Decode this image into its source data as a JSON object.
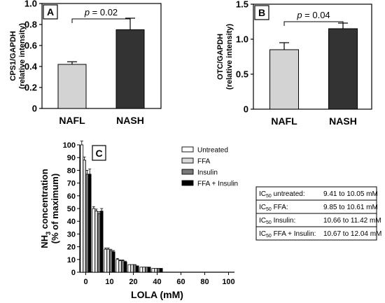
{
  "chart_data": [
    {
      "panel": "A",
      "type": "bar",
      "ylabel_line1": "CPS1/GAPDH",
      "ylabel_line2": "(relative intensity)",
      "categories": [
        "NAFL",
        "NASH"
      ],
      "values": [
        0.42,
        0.75
      ],
      "errors": [
        0.025,
        0.11
      ],
      "colors": [
        "#d3d3d3",
        "#333333"
      ],
      "ylim": [
        0,
        1.0
      ],
      "yticks": [
        "0",
        "0.2",
        "0.4",
        "0.6",
        "0.8",
        "1.0"
      ],
      "ytick_values": [
        0,
        0.2,
        0.4,
        0.6,
        0.8,
        1.0
      ],
      "annotation": {
        "p_label": "p",
        "text": " = 0.02"
      }
    },
    {
      "panel": "B",
      "type": "bar",
      "ylabel_line1": "OTC/GAPDH",
      "ylabel_line2": "(relative intensity)",
      "categories": [
        "NAFL",
        "NASH"
      ],
      "values": [
        0.85,
        1.15
      ],
      "errors": [
        0.1,
        0.08
      ],
      "colors": [
        "#d3d3d3",
        "#333333"
      ],
      "ylim": [
        0,
        1.5
      ],
      "yticks": [
        "0",
        "0.5",
        "1.0",
        "1.5"
      ],
      "ytick_values": [
        0,
        0.5,
        1.0,
        1.5
      ],
      "annotation": {
        "p_label": "p",
        "text": " = 0.04"
      }
    },
    {
      "panel": "C",
      "type": "bar",
      "ylabel_line1_pre": "NH",
      "ylabel_line1_sub": "3",
      "ylabel_line1_post": " concentration",
      "ylabel_line2": "(% of maximum)",
      "xlabel": "LOLA (mM)",
      "categories": [
        "0",
        "5",
        "10",
        "15",
        "20",
        "30",
        "40",
        "50",
        "60",
        "70",
        "80",
        "90",
        "100"
      ],
      "xticks": [
        "0",
        "10",
        "20",
        "40",
        "60",
        "80",
        "100"
      ],
      "xtick_categories": [
        "0",
        "10",
        "20",
        "40",
        "60",
        "80",
        "100"
      ],
      "ylim": [
        0,
        100
      ],
      "yticks": [
        "0",
        "10",
        "20",
        "30",
        "40",
        "50",
        "60",
        "70",
        "80",
        "90",
        "100"
      ],
      "ytick_values": [
        0,
        10,
        20,
        30,
        40,
        50,
        60,
        70,
        80,
        90,
        100
      ],
      "series": [
        {
          "name": "Untreated",
          "color": "#ffffff",
          "values": [
            100,
            50,
            18,
            10,
            6,
            4,
            3,
            0,
            0,
            0,
            0,
            0,
            0
          ],
          "errors": [
            3,
            1.5,
            1,
            0.8,
            0.5,
            0.4,
            0.3,
            0,
            0,
            0,
            0,
            0,
            0
          ]
        },
        {
          "name": "FFA",
          "color": "#d9d9d9",
          "values": [
            88,
            48,
            18,
            9,
            6,
            4,
            3,
            0,
            0,
            0,
            0,
            0,
            0
          ],
          "errors": [
            2.5,
            1.5,
            1,
            0.7,
            0.5,
            0.4,
            0.3,
            0,
            0,
            0,
            0,
            0,
            0
          ]
        },
        {
          "name": "Insulin",
          "color": "#7a7a7a",
          "values": [
            77,
            46,
            17,
            9,
            6,
            4,
            3,
            0,
            0,
            0,
            0,
            0,
            0
          ],
          "errors": [
            3,
            1.5,
            1,
            0.7,
            0.5,
            0.4,
            0.3,
            0,
            0,
            0,
            0,
            0,
            0
          ]
        },
        {
          "name": "FFA + Insulin",
          "color": "#000000",
          "values": [
            77,
            48,
            16,
            8,
            5,
            4,
            3,
            0,
            0,
            0,
            0,
            0,
            0
          ],
          "errors": [
            4,
            2,
            1,
            0.7,
            0.5,
            0.4,
            0.3,
            0,
            0,
            0,
            0,
            0,
            0
          ]
        }
      ],
      "ic50_table": [
        {
          "pre": "IC",
          "sub": "50",
          "label": " untreated:",
          "value": "9.41 to 10.05 mM"
        },
        {
          "pre": "IC",
          "sub": "50",
          "label": " FFA:",
          "value": "9.85 to 10.61 mM"
        },
        {
          "pre": "IC",
          "sub": "50",
          "label": " Insulin:",
          "value": "10.66 to 11.42 mM"
        },
        {
          "pre": "IC",
          "sub": "50",
          "label": " FFA + Insulin:",
          "value": "10.67 to 12.04 mM"
        }
      ]
    }
  ]
}
